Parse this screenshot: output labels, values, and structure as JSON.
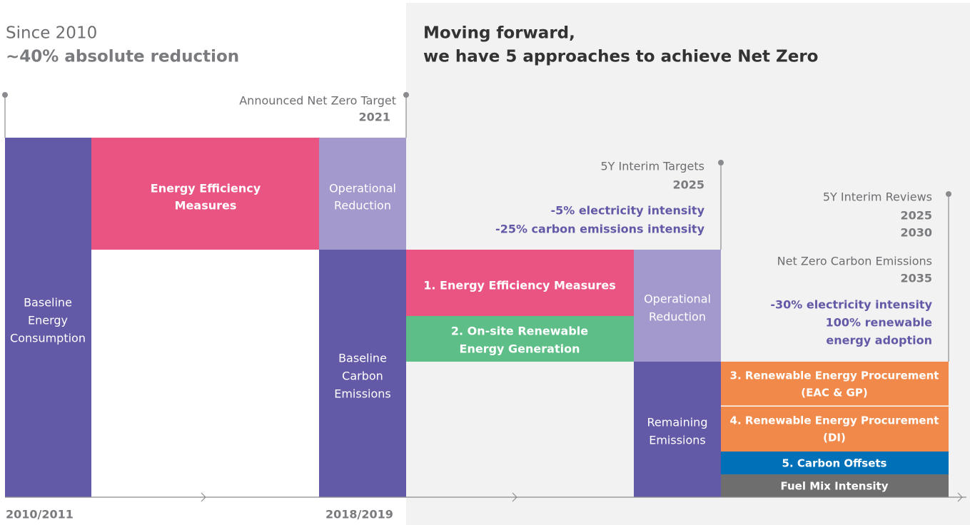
{
  "header": {
    "left_line1": "Since 2010",
    "left_line2": "~40% absolute reduction",
    "right_line1": "Moving forward,",
    "right_line2": "we have 5 approaches to achieve Net Zero"
  },
  "milestones": [
    {
      "title": "Announced Net Zero Target",
      "year": "2021"
    },
    {
      "title": "5Y Interim Targets",
      "year": "2025",
      "targets": [
        "-5% electricity intensity",
        "-25% carbon emissions intensity"
      ]
    },
    {
      "title": "5Y Interim Reviews",
      "years": [
        "2025",
        "2030"
      ],
      "title2": "Net Zero Carbon Emissions",
      "year2": "2035",
      "targets": [
        "-30% electricity intensity",
        "100% renewable",
        "energy adoption"
      ]
    }
  ],
  "blocks": [
    {
      "lines": [
        "Baseline",
        "Energy",
        "Consumption"
      ]
    },
    {
      "lines": [
        "Energy Efficiency",
        "Measures"
      ]
    },
    {
      "lines": [
        "Operational",
        "Reduction"
      ]
    },
    {
      "lines": [
        "Baseline",
        "Carbon",
        "Emissions"
      ]
    },
    {
      "lines": [
        "1. Energy Efficiency Measures"
      ]
    },
    {
      "lines": [
        "2. On-site Renewable",
        "Energy Generation"
      ]
    },
    {
      "lines": [
        "Operational",
        "Reduction"
      ]
    },
    {
      "lines": [
        "Remaining",
        "Emissions"
      ]
    },
    {
      "lines": [
        "3. Renewable Energy Procurement",
        "(EAC & GP)"
      ]
    },
    {
      "lines": [
        "4. Renewable Energy Procurement",
        "(DI)"
      ]
    },
    {
      "lines": [
        "5. Carbon Offsets"
      ]
    },
    {
      "lines": [
        "Fuel Mix Intensity"
      ]
    }
  ],
  "axis_labels": [
    "2010/2011",
    "2018/2019"
  ]
}
